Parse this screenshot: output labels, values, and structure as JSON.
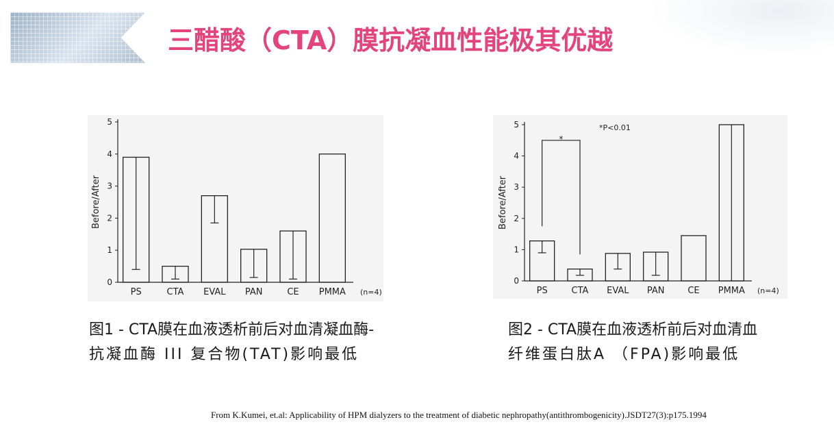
{
  "title": "三醋酸（CTA）膜抗凝血性能极其优越",
  "figures": [
    {
      "caption_line1": "图1 - CTA膜在血液透析前后对血清凝血酶-",
      "caption_line2": "抗凝血酶 III 复合物(TAT)影响最低"
    },
    {
      "caption_line1": "图2 - CTA膜在血液透析前后对血清血",
      "caption_line2": "纤维蛋白肽A （FPA)影响最低"
    }
  ],
  "reference": "From K.Kumei, et.al: Applicability of HPM dialyzers to the treatment of diabetic nephropathy(antithrombogenicity).JSDT27(3):p175.1994",
  "colors": {
    "title": "#e4447c",
    "bar_stroke": "#222222",
    "chart_bg": "#f4f4f4"
  },
  "chart_data": [
    {
      "type": "bar",
      "ylabel": "Before/After",
      "ylim": [
        0,
        5
      ],
      "yticks": [
        "0",
        "1",
        "2",
        "3",
        "4",
        "5"
      ],
      "categories": [
        "PS",
        "CTA",
        "EVAL",
        "PAN",
        "CE",
        "PMMA"
      ],
      "n_label": "(n=4)",
      "series": [
        {
          "values": [
            3.9,
            0.5,
            2.7,
            1.03,
            1.6,
            4.0
          ],
          "error_low": [
            0.4,
            0.1,
            1.85,
            0.15,
            0.1,
            4.0
          ]
        }
      ]
    },
    {
      "type": "bar",
      "ylabel": "Before/After",
      "ylim": [
        0,
        5
      ],
      "yticks": [
        "0",
        "1",
        "2",
        "3",
        "4",
        "5"
      ],
      "categories": [
        "PS",
        "CTA",
        "EVAL",
        "PAN",
        "CE",
        "PMMA"
      ],
      "n_label": "(n=4)",
      "annotation": "*P<0.01",
      "significance_marker": "*",
      "series": [
        {
          "values": [
            1.28,
            0.38,
            0.88,
            0.92,
            1.45,
            5.0
          ],
          "error_low": [
            0.9,
            0.18,
            0.38,
            0.18,
            1.45,
            5.0
          ]
        }
      ]
    }
  ]
}
